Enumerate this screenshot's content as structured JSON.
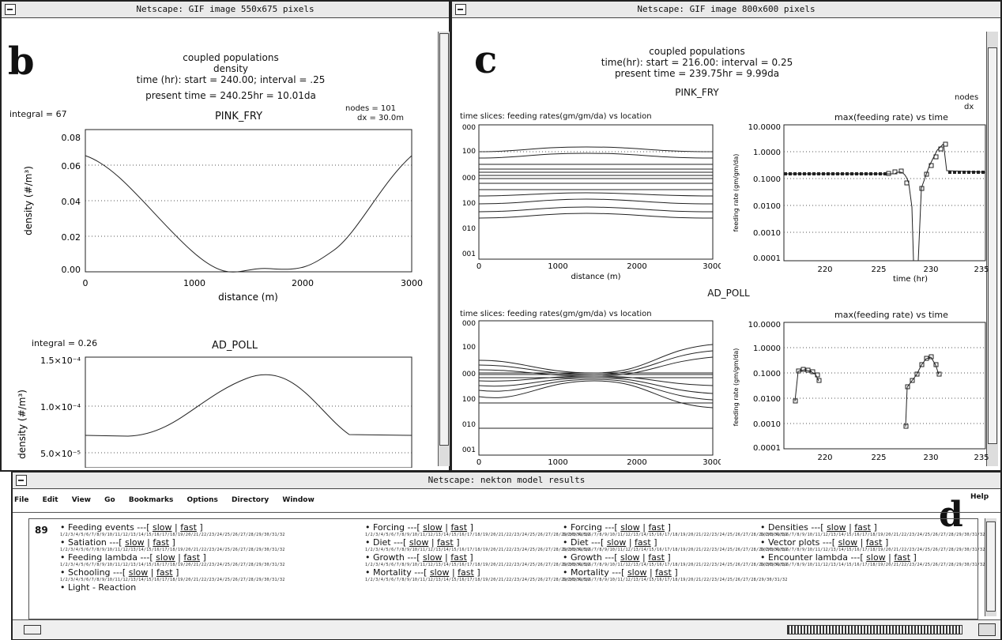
{
  "win_b": {
    "title": "Netscape: GIF image 550x675 pixels",
    "letter": "b",
    "header": [
      "coupled populations",
      "density",
      "time (hr): start = 240.00;  interval = .25",
      "present time = 240.25hr = 10.01da"
    ],
    "nodes": "nodes = 101",
    "dx": "dx = 30.0m",
    "plot1": {
      "integral": "integral = 67",
      "title": "PINK_FRY",
      "ylabel": "density (#/m³)",
      "xlabel": "distance (m)",
      "yticks": [
        "0.08",
        "0.06",
        "0.04",
        "0.02",
        "0.00"
      ],
      "xticks": [
        "0",
        "1000",
        "2000",
        "3000"
      ]
    },
    "plot2": {
      "integral": "integral = 0.26",
      "title": "AD_POLL",
      "ylabel": "density (#/m³)",
      "yticks": [
        "1.5×10⁻⁴",
        "1.0×10⁻⁴",
        "5.0×10⁻⁵"
      ]
    }
  },
  "win_c": {
    "title": "Netscape: GIF image 800x600 pixels",
    "letter": "c",
    "header": [
      "coupled populations",
      "time(hr): start = 216.00: interval = 0.25",
      "present time = 239.75hr = 9.99da"
    ],
    "nodes": "nodes",
    "dx": "dx",
    "pink_title": "PINK_FRY",
    "ad_title": "AD_POLL",
    "slices_title": "time slices: feeding rates(gm/gm/da) vs location",
    "max_title": "max(feeding rate) vs time",
    "left_yticks": [
      "000",
      "100",
      "000",
      "100",
      "010",
      "001"
    ],
    "left_xticks": [
      "0",
      "1000",
      "2000",
      "3000"
    ],
    "left_xlabel": "distance (m)",
    "right_ylabel": "feeding rate (gm/gm/da)",
    "right_yticks": [
      "10.0000",
      "1.0000",
      "0.1000",
      "0.0100",
      "0.0010",
      "0.0001"
    ],
    "right_xticks_top": [
      "220",
      "225",
      "230",
      "235"
    ],
    "right_xlabel": "time (hr)",
    "right_xticks_bottom": [
      "220",
      "225",
      "230",
      "235"
    ]
  },
  "win_d": {
    "title": "Netscape: nekton model results",
    "letter": "d",
    "menus": [
      "File",
      "Edit",
      "View",
      "Go",
      "Bookmarks",
      "Options",
      "Directory",
      "Window"
    ],
    "help": "Help",
    "page_number": "89",
    "slow": "slow",
    "fast": "fast",
    "col1": [
      "Feeding events",
      "Satiation",
      "Feeding lambda",
      "Schooling",
      "Light - Reaction"
    ],
    "col2": [
      "Forcing",
      "Diet",
      "Growth",
      "Mortality"
    ],
    "col3": [
      "Forcing",
      "Diet",
      "Growth",
      "Mortality"
    ],
    "col4": [
      "Densities",
      "Vector plots",
      "Encounter lambda"
    ],
    "link_row": "1/2/3/4/5/6/7/8/9/10/11/12/13/14/15/16/17/18/19/20/21/22/23/24/25/26/27/28/29/30/31/32"
  }
}
